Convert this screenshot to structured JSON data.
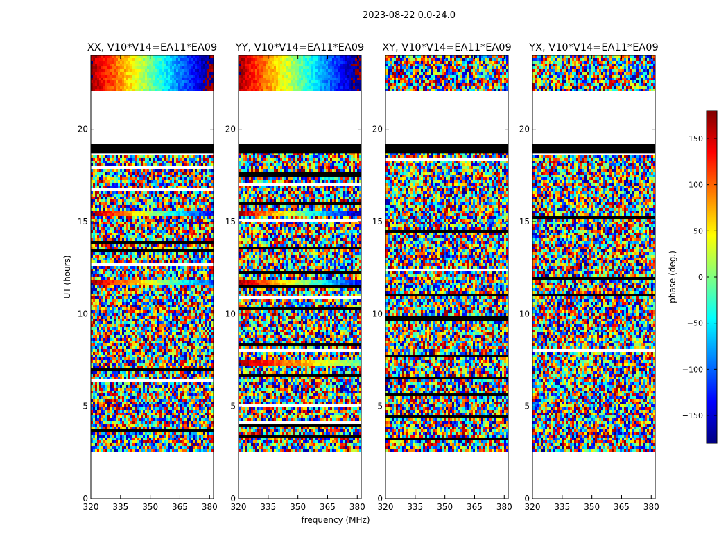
{
  "chart_data": {
    "type": "heatmap",
    "suptitle": "2023-08-22 0.0-24.0",
    "xlabel": "frequency (MHz)",
    "ylabel": "UT (hours)",
    "xlim": [
      320,
      382
    ],
    "ylim": [
      0,
      24
    ],
    "xticks": [
      320,
      335,
      350,
      365,
      380
    ],
    "yticks": [
      0,
      5,
      10,
      15,
      20
    ],
    "valid_ut_ranges": [
      [
        2.6,
        19.2
      ],
      [
        22.0,
        24.0
      ]
    ],
    "panels": [
      {
        "title": "XX, V10*V14=EA11*EA09",
        "coherent_bands": [
          {
            "ut": [
              22.0,
              24.0
            ],
            "phase_slope_deg_per_mhz": -5.8
          },
          {
            "ut": [
              15.3,
              15.6
            ],
            "phase_slope_deg_per_mhz": -5.0
          },
          {
            "ut": [
              11.5,
              11.9
            ],
            "phase_slope_deg_per_mhz": -4.5
          }
        ]
      },
      {
        "title": "YY, V10*V14=EA11*EA09",
        "coherent_bands": [
          {
            "ut": [
              22.0,
              24.0
            ],
            "phase_slope_deg_per_mhz": -5.8
          },
          {
            "ut": [
              15.3,
              15.6
            ],
            "phase_slope_deg_per_mhz": -5.5
          },
          {
            "ut": [
              11.5,
              11.9
            ],
            "phase_slope_deg_per_mhz": -5.0
          },
          {
            "ut": [
              7.2,
              7.5
            ],
            "phase_slope_deg_per_mhz": -3.0
          }
        ]
      },
      {
        "title": "XY, V10*V14=EA11*EA09",
        "coherent_bands": []
      },
      {
        "title": "YX, V10*V14=EA11*EA09",
        "coherent_bands": []
      }
    ],
    "colorbar": {
      "label": "phase (deg.)",
      "range": [
        -180,
        180
      ],
      "ticks": [
        -150,
        -100,
        -50,
        0,
        50,
        100,
        150
      ],
      "tick_labels": [
        "−150",
        "−100",
        "−50",
        "0",
        "50",
        "100",
        "150"
      ],
      "colormap": "jet"
    }
  }
}
